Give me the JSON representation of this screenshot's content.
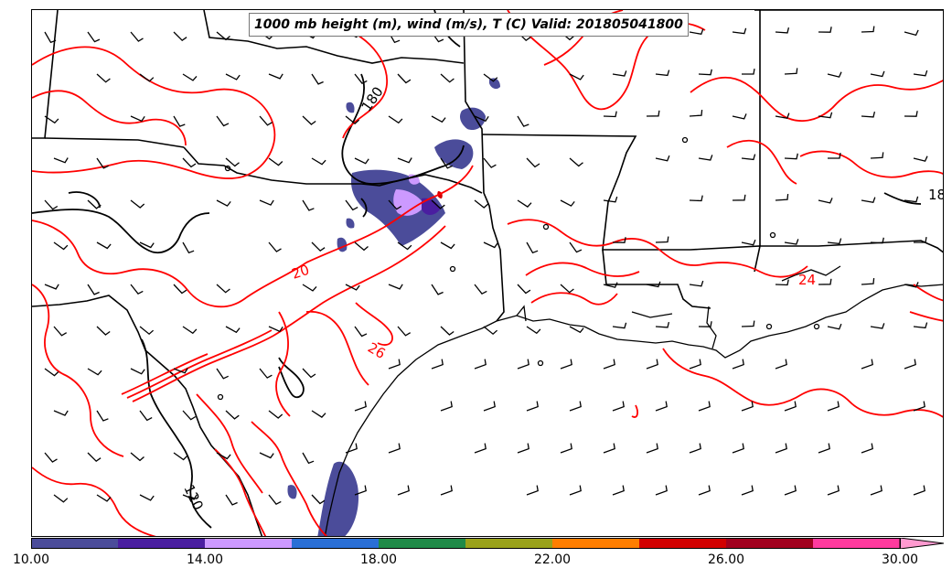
{
  "title": "1000 mb height (m), wind (m/s), T (C) Valid: 201805041800",
  "contour_labels": {
    "height_180_north": "180",
    "height_180_east": "18",
    "height_120": "120",
    "temp_20": "20",
    "temp_26": "26",
    "temp_24": "24"
  },
  "colorbar": {
    "labels": [
      "10.00",
      "14.00",
      "18.00",
      "22.00",
      "26.00",
      "30.00"
    ],
    "colors": [
      "#4b4c9a",
      "#4a1ea0",
      "#cc99ff",
      "#2a6fd6",
      "#1f8a48",
      "#9aa21a",
      "#ff7e00",
      "#d20000",
      "#a1001e",
      "#ff3a9e"
    ],
    "extend_color": "#ff9ad0"
  },
  "colors": {
    "temperature_contour": "#ff0000",
    "height_contour": "#000000",
    "boundary": "#000000",
    "wind_barb": "#000000"
  }
}
